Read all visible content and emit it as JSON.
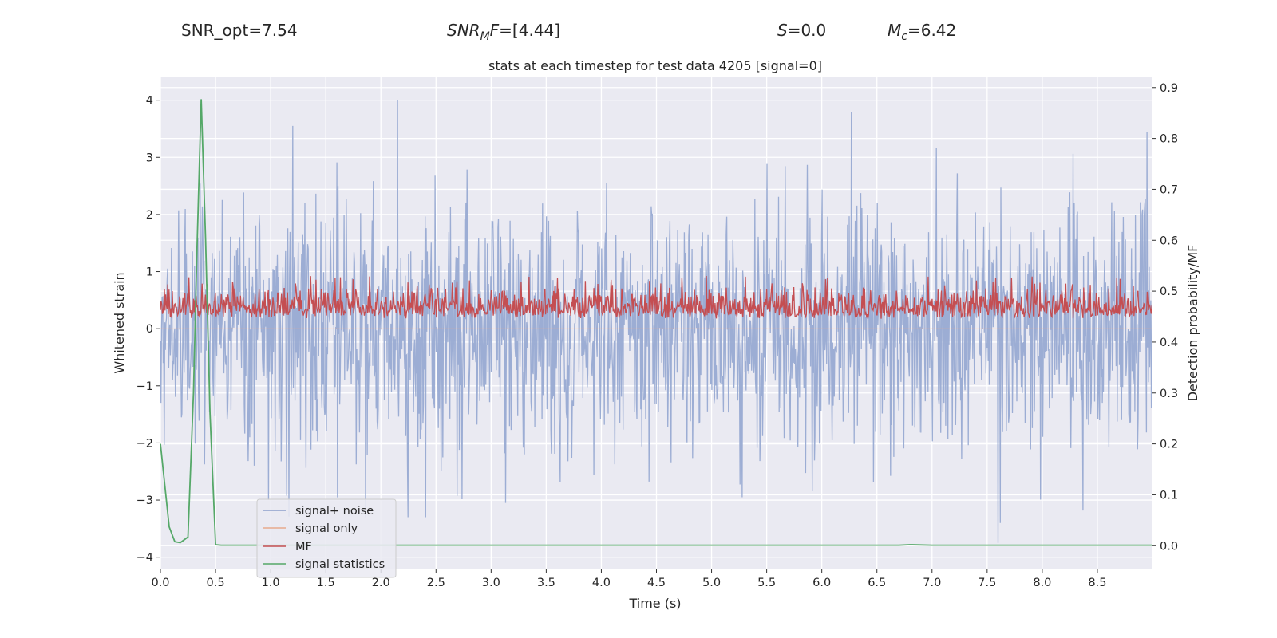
{
  "header": {
    "snr_opt": "SNR_opt=7.54",
    "snr_mf_main": "SNR",
    "snr_mf_sub": "M",
    "snr_mf_rest": "F",
    "snr_mf_value": "=[4.44]",
    "s_symbol": "S",
    "s_value": "=0.0",
    "mc_symbol": "M",
    "mc_sub": "c",
    "mc_value": "=6.42"
  },
  "chart_data": {
    "type": "line",
    "title": "stats at each timestep for test data 4205 [signal=0]",
    "xlabel": "Time (s)",
    "ylabel_left": "Whitened strain",
    "ylabel_right": "Detection probability/MF",
    "xlim": [
      0.0,
      9.0
    ],
    "ylim_left": [
      -4.2,
      4.4
    ],
    "ylim_right": [
      -0.045,
      0.92
    ],
    "x_ticks": [
      "0.0",
      "0.5",
      "1.0",
      "1.5",
      "2.0",
      "2.5",
      "3.0",
      "3.5",
      "4.0",
      "4.5",
      "5.0",
      "5.5",
      "6.0",
      "6.5",
      "7.0",
      "7.5",
      "8.0",
      "8.5"
    ],
    "left_ticks": [
      "4",
      "3",
      "2",
      "1",
      "0",
      "−1",
      "−2",
      "−3",
      "−4"
    ],
    "right_ticks": [
      "0.9",
      "0.8",
      "0.7",
      "0.6",
      "0.5",
      "0.4",
      "0.3",
      "0.2",
      "0.1",
      "0.0"
    ],
    "left_tick_values": [
      4,
      3,
      2,
      1,
      0,
      -1,
      -2,
      -3,
      -4
    ],
    "right_tick_values": [
      0.9,
      0.8,
      0.7,
      0.6,
      0.5,
      0.4,
      0.3,
      0.2,
      0.1,
      0.0
    ],
    "legend": {
      "placement": "lower-left",
      "entries": [
        {
          "label": "signal+ noise",
          "color": "#8da0cb"
        },
        {
          "label": "signal only",
          "color": "#e8a98c"
        },
        {
          "label": "MF",
          "color": "#c44e52"
        },
        {
          "label": "signal statistics",
          "color": "#55a868"
        }
      ]
    },
    "series": [
      {
        "name": "signal+ noise",
        "axis": "left",
        "color": "#98aad2",
        "description": "whitened strain noise, approx N(0,1), range about -3.8 to 4.0",
        "samples": 1800,
        "sigma": 1.0,
        "peaks": [
          {
            "t": 2.15,
            "v": 4.0
          },
          {
            "t": 6.27,
            "v": 3.8
          },
          {
            "t": 1.2,
            "v": 3.55
          },
          {
            "t": 8.95,
            "v": 3.45
          },
          {
            "t": 7.6,
            "v": -3.75
          },
          {
            "t": 7.62,
            "v": -3.4
          },
          {
            "t": 3.13,
            "v": -3.05
          },
          {
            "t": 5.28,
            "v": -2.95
          },
          {
            "t": 0.98,
            "v": -3.0
          }
        ]
      },
      {
        "name": "signal only",
        "axis": "left",
        "color": "#e8a98c",
        "description": "zero signal (flat line at 0)"
      },
      {
        "name": "MF",
        "axis": "right",
        "color": "#c44e52",
        "description": "matched filter output fluctuating roughly between 0.42 and 0.53",
        "samples": 1500,
        "base": 0.45,
        "low": 0.42,
        "high": 0.53
      },
      {
        "name": "signal statistics",
        "axis": "right",
        "color": "#55a868",
        "x": [
          0.0,
          0.08,
          0.13,
          0.18,
          0.25,
          0.3,
          0.33,
          0.37,
          0.41,
          0.45,
          0.5,
          0.55,
          0.7,
          1.0,
          1.5,
          2.0,
          3.0,
          4.0,
          5.0,
          6.0,
          6.7,
          6.8,
          7.0,
          8.0,
          9.0
        ],
        "y": [
          0.2,
          0.037,
          0.008,
          0.006,
          0.017,
          0.3,
          0.57,
          0.877,
          0.6,
          0.26,
          0.002,
          0.001,
          0.001,
          0.001,
          0.001,
          0.001,
          0.001,
          0.001,
          0.001,
          0.001,
          0.001,
          0.002,
          0.001,
          0.001,
          0.001
        ]
      }
    ]
  }
}
